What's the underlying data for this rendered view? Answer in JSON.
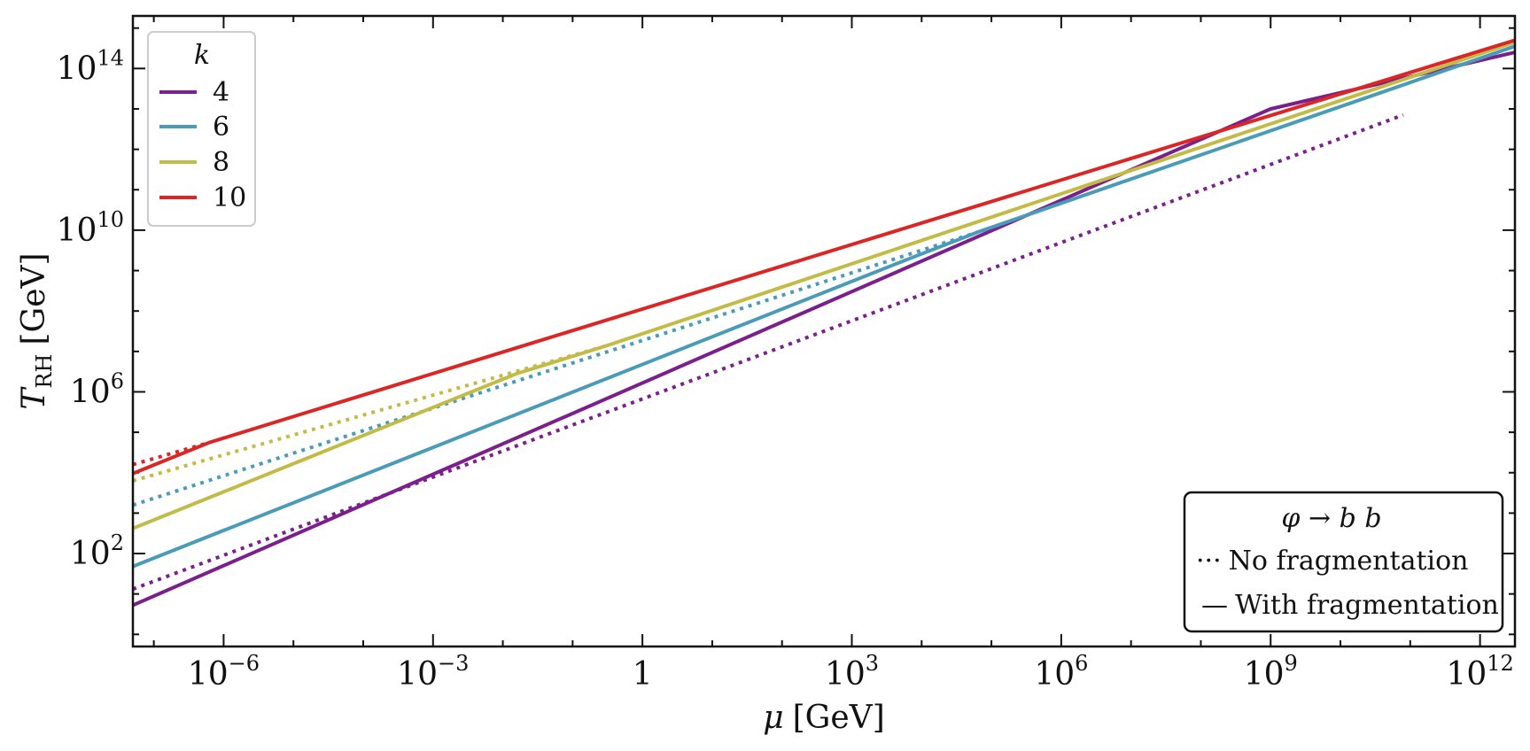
{
  "chart_data": {
    "type": "line",
    "xlabel_var": "μ",
    "xlabel_unit": "[GeV]",
    "ylabel_var": "T",
    "ylabel_sub": "RH",
    "ylabel_unit": "[GeV]",
    "x_scale": "log",
    "y_scale": "log",
    "xlim_log10": [
      -7.3,
      12.5
    ],
    "ylim_log10": [
      -0.3,
      15.3
    ],
    "x_ticks": [
      {
        "exp": -6,
        "base": "10",
        "sup": "−6"
      },
      {
        "exp": -3,
        "base": "10",
        "sup": "−3"
      },
      {
        "exp": 0,
        "base": "1",
        "sup": ""
      },
      {
        "exp": 3,
        "base": "10",
        "sup": "3"
      },
      {
        "exp": 6,
        "base": "10",
        "sup": "6"
      },
      {
        "exp": 9,
        "base": "10",
        "sup": "9"
      },
      {
        "exp": 12,
        "base": "10",
        "sup": "12"
      }
    ],
    "y_ticks": [
      {
        "exp": 2,
        "base": "10",
        "sup": "2"
      },
      {
        "exp": 6,
        "base": "10",
        "sup": "6"
      },
      {
        "exp": 10,
        "base": "10",
        "sup": "10"
      },
      {
        "exp": 14,
        "base": "10",
        "sup": "14"
      }
    ],
    "legend_k": {
      "title": "k",
      "placement": "top-left",
      "entries": [
        {
          "label": "4",
          "color": "#7b1f8c"
        },
        {
          "label": "6",
          "color": "#4a9bb8"
        },
        {
          "label": "8",
          "color": "#c2bb45"
        },
        {
          "label": "10",
          "color": "#dc2626"
        }
      ]
    },
    "legend_style": {
      "title": "φ → b b",
      "placement": "bottom-right",
      "entries": [
        {
          "symbol": "···",
          "label": "No fragmentation",
          "dash": "dotted"
        },
        {
          "symbol": "—",
          "label": "With fragmentation",
          "dash": "solid"
        }
      ]
    },
    "series": [
      {
        "k": "4",
        "style": "solid",
        "color": "#7b1f8c",
        "points": [
          [
            -7.3,
            0.72
          ],
          [
            9.0,
            13.0
          ],
          [
            12.5,
            14.4
          ]
        ]
      },
      {
        "k": "4",
        "style": "dotted",
        "color": "#7b1f8c",
        "points": [
          [
            -7.3,
            1.12
          ],
          [
            10.9,
            12.85
          ]
        ]
      },
      {
        "k": "6",
        "style": "solid",
        "color": "#4a9bb8",
        "points": [
          [
            -7.3,
            1.68
          ],
          [
            3.8,
            9.28
          ],
          [
            4.8,
            9.95
          ],
          [
            12.5,
            14.55
          ]
        ]
      },
      {
        "k": "6",
        "style": "dotted",
        "color": "#4a9bb8",
        "points": [
          [
            -7.3,
            3.2
          ],
          [
            4.8,
            9.95
          ]
        ]
      },
      {
        "k": "8",
        "style": "solid",
        "color": "#c2bb45",
        "points": [
          [
            -7.3,
            2.62
          ],
          [
            -1.8,
            6.45
          ],
          [
            -0.5,
            7.15
          ],
          [
            12.5,
            14.65
          ]
        ]
      },
      {
        "k": "8",
        "style": "dotted",
        "color": "#c2bb45",
        "points": [
          [
            -7.3,
            3.8
          ],
          [
            -0.5,
            7.15
          ]
        ]
      },
      {
        "k": "10",
        "style": "solid",
        "color": "#dc2626",
        "points": [
          [
            -7.3,
            3.98
          ],
          [
            -6.2,
            4.75
          ],
          [
            12.5,
            14.7
          ]
        ]
      },
      {
        "k": "10",
        "style": "dotted",
        "color": "#dc2626",
        "points": [
          [
            -7.3,
            4.2
          ],
          [
            -6.2,
            4.75
          ]
        ]
      }
    ]
  }
}
